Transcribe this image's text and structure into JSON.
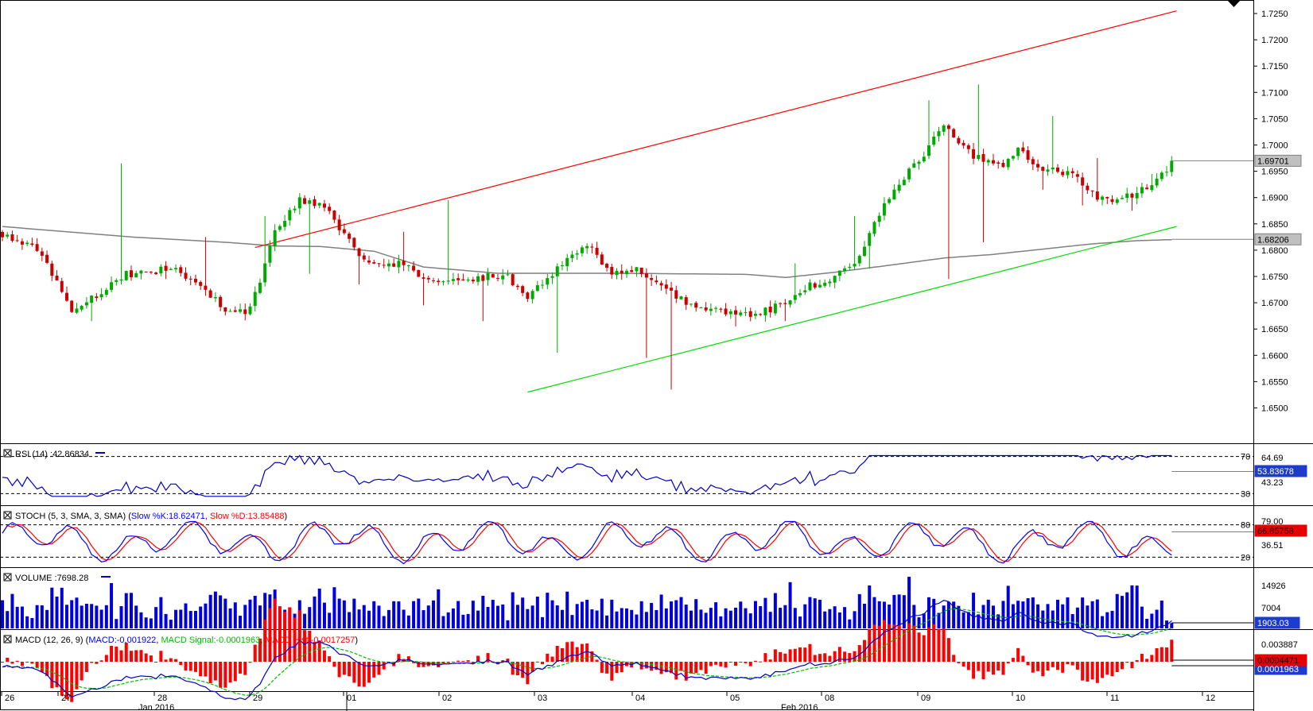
{
  "colors": {
    "bull": "#00aa00",
    "bear": "#cc0000",
    "ma": "#808080",
    "channel_upper": "#ff0000",
    "channel_lower": "#00dd00",
    "rsi": "#0000cc",
    "stoch_k": "#0000ff",
    "stoch_d": "#ff0000",
    "volume": "#0000dd",
    "macd": "#0000cc",
    "signal": "#00bb00",
    "hist": "#ff0000",
    "tag_gray": "#c0c0c0",
    "tag_blue": "#1e3ccc",
    "tag_green": "#1a9b1a",
    "tag_red": "#e80000"
  },
  "chart_data": [
    {
      "type": "candlestick",
      "panel": "price",
      "ylim": [
        1.6475,
        1.7265
      ],
      "y_ticks": [
        "1.7250",
        "1.7200",
        "1.7150",
        "1.7100",
        "1.7050",
        "1.7000",
        "1.6950",
        "1.6900",
        "1.6850",
        "1.6800",
        "1.6750",
        "1.6700",
        "1.6650",
        "1.6600",
        "1.6550",
        "1.6500"
      ],
      "x_ticks": [
        "26",
        "27",
        "28",
        "29",
        "01",
        "02",
        "03",
        "04",
        "05",
        "08",
        "09",
        "10",
        "11",
        "12"
      ],
      "x_month_labels": [
        "Jan 2016",
        "Feb 2016"
      ],
      "n_bars": 237,
      "anchors": [
        [
          0,
          1.683
        ],
        [
          8,
          1.6795
        ],
        [
          14,
          1.6685
        ],
        [
          25,
          1.6755
        ],
        [
          35,
          1.6765
        ],
        [
          45,
          1.669
        ],
        [
          50,
          1.6685
        ],
        [
          55,
          1.6835
        ],
        [
          60,
          1.6895
        ],
        [
          65,
          1.6885
        ],
        [
          72,
          1.6785
        ],
        [
          80,
          1.6775
        ],
        [
          88,
          1.6735
        ],
        [
          94,
          1.6745
        ],
        [
          101,
          1.6755
        ],
        [
          106,
          1.6715
        ],
        [
          112,
          1.6765
        ],
        [
          118,
          1.6815
        ],
        [
          122,
          1.676
        ],
        [
          128,
          1.6765
        ],
        [
          133,
          1.6725
        ],
        [
          140,
          1.6695
        ],
        [
          149,
          1.6675
        ],
        [
          155,
          1.6685
        ],
        [
          161,
          1.6725
        ],
        [
          167,
          1.6745
        ],
        [
          172,
          1.677
        ],
        [
          178,
          1.6885
        ],
        [
          182,
          1.6935
        ],
        [
          190,
          1.7035
        ],
        [
          196,
          1.6975
        ],
        [
          202,
          1.6965
        ],
        [
          205,
          1.6995
        ],
        [
          210,
          1.6955
        ],
        [
          216,
          1.6945
        ],
        [
          222,
          1.6895
        ],
        [
          228,
          1.6905
        ],
        [
          236,
          1.6955
        ]
      ],
      "extra_high": [
        [
          8,
          1.6805
        ],
        [
          15,
          1.6685
        ],
        [
          24,
          1.6965
        ],
        [
          41,
          1.6825
        ],
        [
          53,
          1.6865
        ],
        [
          68,
          1.6845
        ],
        [
          81,
          1.6835
        ],
        [
          90,
          1.6895
        ],
        [
          112,
          1.6775
        ],
        [
          136,
          1.6615
        ],
        [
          145,
          1.6675
        ],
        [
          160,
          1.6775
        ],
        [
          172,
          1.6865
        ],
        [
          187,
          1.7085
        ],
        [
          197,
          1.7115
        ],
        [
          212,
          1.7055
        ],
        [
          221,
          1.6975
        ],
        [
          232,
          1.6945
        ]
      ],
      "extra_low": [
        [
          18,
          1.6665
        ],
        [
          33,
          1.6745
        ],
        [
          48,
          1.6695
        ],
        [
          62,
          1.6755
        ],
        [
          72,
          1.6735
        ],
        [
          85,
          1.6695
        ],
        [
          97,
          1.6665
        ],
        [
          112,
          1.6605
        ],
        [
          130,
          1.6595
        ],
        [
          135,
          1.6535
        ],
        [
          148,
          1.6655
        ],
        [
          158,
          1.6665
        ],
        [
          175,
          1.6765
        ],
        [
          191,
          1.6745
        ],
        [
          198,
          1.6815
        ],
        [
          210,
          1.6915
        ],
        [
          218,
          1.6885
        ],
        [
          228,
          1.6875
        ]
      ],
      "last_candle_close": 1.697,
      "moving_average": {
        "points": [
          [
            0,
            1.6845
          ],
          [
            26,
            1.6825
          ],
          [
            45,
            1.6815
          ],
          [
            55,
            1.6808
          ],
          [
            64,
            1.6807
          ],
          [
            75,
            1.6798
          ],
          [
            85,
            1.6768
          ],
          [
            100,
            1.6756
          ],
          [
            125,
            1.6756
          ],
          [
            150,
            1.6754
          ],
          [
            158,
            1.6748
          ],
          [
            168,
            1.6758
          ],
          [
            178,
            1.677
          ],
          [
            190,
            1.6785
          ],
          [
            200,
            1.6792
          ],
          [
            210,
            1.6802
          ],
          [
            220,
            1.6812
          ],
          [
            229,
            1.6818
          ],
          [
            236,
            1.682
          ]
        ],
        "last_value": 1.68206
      },
      "channel_upper": [
        [
          51,
          1.6805
        ],
        [
          237,
          1.7255
        ]
      ],
      "channel_lower": [
        [
          106,
          1.653
        ],
        [
          237,
          1.6845
        ]
      ],
      "tags": [
        "1.69701",
        "1.68206"
      ]
    },
    {
      "type": "line",
      "panel": "rsi",
      "label": "RSI (14) :42.86834",
      "ylim": [
        20,
        80
      ],
      "levels": [
        70,
        30
      ],
      "right_labels": [
        "70",
        "64.69",
        "53.83678",
        "43.23",
        "30"
      ],
      "values": [
        43.23,
        43.23,
        53.83678
      ]
    },
    {
      "type": "line",
      "panel": "stoch",
      "label": "STOCH (5, 3, SMA, 3, SMA) (Slow %K:18.62471, Slow %D:13.85488)",
      "ylim": [
        0,
        100
      ],
      "levels": [
        80,
        20
      ],
      "right_labels": [
        "80",
        "79.00",
        "66.85758",
        "36.51",
        "20"
      ],
      "series": [
        {
          "name": "Slow %K"
        },
        {
          "name": "Slow %D"
        }
      ]
    },
    {
      "type": "bar",
      "panel": "volume",
      "label": "VOLUME :7698.28",
      "right_labels": [
        "14926",
        "7004",
        "1903.03"
      ],
      "last_value": 1903.03
    },
    {
      "type": "line",
      "panel": "macd",
      "label_prefix": "MACD (12, 26, 9) (",
      "label_macd": "MACD:-0.001922",
      "label_signal": "MACD Signal:-0.0001963",
      "label_hist": "MACD Hist:-0.0017257",
      "label_suffix": ")",
      "right_labels": [
        "0.003887",
        "0.0004471",
        "0.0001963"
      ],
      "series": [
        {
          "name": "MACD"
        },
        {
          "name": "MACD Signal"
        },
        {
          "name": "MACD Hist"
        }
      ]
    }
  ]
}
